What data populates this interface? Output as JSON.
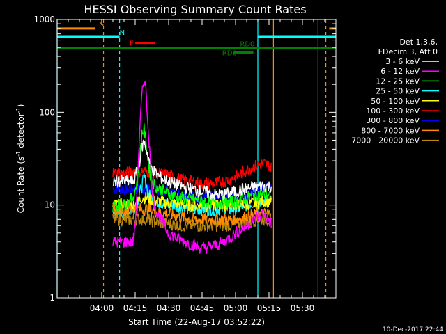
{
  "chart_data": {
    "type": "line",
    "title": "HESSI Observing Summary Count Rates",
    "xlabel": "Start Time (22-Aug-17 03:52:22)",
    "ylabel_main": "Count Rate (s",
    "ylabel_exp1": "-1",
    "ylabel_mid": " detector",
    "ylabel_exp2": "-1",
    "ylabel_end": ")",
    "y_scale": "log",
    "ylim": [
      1,
      1000
    ],
    "xlim_minutes": [
      -20,
      105
    ],
    "x_ticks": [
      {
        "m": 0,
        "label": "04:00"
      },
      {
        "m": 15,
        "label": "04:15"
      },
      {
        "m": 30,
        "label": "04:30"
      },
      {
        "m": 45,
        "label": "04:45"
      },
      {
        "m": 60,
        "label": "05:00"
      },
      {
        "m": 75,
        "label": "05:15"
      },
      {
        "m": 90,
        "label": "05:30"
      }
    ],
    "y_ticks": [
      {
        "v": 1,
        "label": "1"
      },
      {
        "v": 10,
        "label": "10"
      },
      {
        "v": 100,
        "label": "100"
      },
      {
        "v": 1000,
        "label": "1000"
      }
    ],
    "legend_position": "right",
    "legend_header": [
      "Det 1,3,6,",
      "FDecim 3, Att 0"
    ],
    "series": [
      {
        "name": "3 - 6 keV",
        "color": "#ffffff",
        "x": [
          5,
          10,
          14,
          15,
          16,
          17,
          18,
          19,
          20,
          21,
          22,
          24,
          26,
          28,
          30,
          35,
          40,
          45,
          50,
          55,
          60,
          65,
          70,
          72,
          75,
          76
        ],
        "y": [
          18,
          18,
          18,
          20,
          24,
          30,
          42,
          48,
          40,
          32,
          26,
          22,
          20,
          19,
          18,
          16,
          15,
          14,
          13,
          13,
          14,
          15,
          16,
          16,
          16,
          16
        ]
      },
      {
        "name": "6 - 12 keV",
        "color": "#ff00ff",
        "x": [
          5,
          10,
          14,
          15,
          16,
          17,
          18,
          19,
          19.5,
          20,
          21,
          22,
          23,
          25,
          28,
          30,
          35,
          40,
          45,
          50,
          55,
          60,
          65,
          70,
          72,
          75,
          76
        ],
        "y": [
          4,
          4,
          4,
          6,
          20,
          60,
          150,
          230,
          220,
          140,
          60,
          25,
          12,
          8,
          6,
          5,
          4.2,
          3.8,
          3.4,
          3.6,
          4,
          5,
          6,
          7.5,
          8,
          7,
          6
        ]
      },
      {
        "name": "12 - 25 keV",
        "color": "#00ff00",
        "x": [
          5,
          10,
          14,
          16,
          17,
          18,
          19,
          20,
          21,
          22,
          24,
          28,
          35,
          45,
          55,
          60,
          65,
          70,
          72,
          75,
          76
        ],
        "y": [
          10,
          10,
          12,
          18,
          30,
          60,
          65,
          45,
          28,
          20,
          16,
          14,
          12,
          11,
          10.5,
          11,
          12,
          13,
          13,
          13,
          13
        ]
      },
      {
        "name": "25 - 50 keV",
        "color": "#00ffff",
        "x": [
          5,
          10,
          14,
          16,
          18,
          19,
          20,
          21,
          24,
          30,
          40,
          50,
          60,
          65,
          70,
          72,
          75,
          76
        ],
        "y": [
          8,
          8,
          9,
          11,
          16,
          20,
          17,
          13,
          11,
          10,
          9,
          9,
          9,
          10,
          11,
          11,
          11,
          11
        ]
      },
      {
        "name": "50 - 100 keV",
        "color": "#ffff00",
        "x": [
          5,
          10,
          15,
          18,
          20,
          24,
          30,
          40,
          50,
          60,
          70,
          72,
          75,
          76
        ],
        "y": [
          10,
          10,
          10,
          12,
          12,
          11,
          10.5,
          10,
          10,
          10,
          10.5,
          11,
          11,
          11
        ]
      },
      {
        "name": "100 - 300 keV",
        "color": "#ff0000",
        "x": [
          5,
          10,
          15,
          20,
          25,
          30,
          35,
          40,
          45,
          50,
          55,
          60,
          65,
          70,
          72,
          75,
          76
        ],
        "y": [
          22,
          22,
          23,
          23,
          22,
          21,
          19,
          18,
          17,
          17,
          18,
          20,
          24,
          27,
          28,
          27,
          25
        ]
      },
      {
        "name": "300 - 800 keV",
        "color": "#0000ff",
        "x": [
          5,
          10,
          15,
          20,
          25,
          30,
          35,
          40,
          45,
          50,
          55,
          60,
          65,
          70,
          72,
          75,
          76
        ],
        "y": [
          15,
          15,
          15,
          15,
          14.5,
          14,
          13,
          12.5,
          12,
          12,
          12,
          12.5,
          13.5,
          14.5,
          15,
          15,
          15
        ]
      },
      {
        "name": "800 - 7000 keV",
        "color": "#ff8c00",
        "x": [
          5,
          10,
          15,
          20,
          25,
          30,
          35,
          40,
          45,
          50,
          55,
          60,
          65,
          70,
          72,
          75,
          76
        ],
        "y": [
          9,
          9,
          9,
          9,
          8.5,
          8,
          7.5,
          7,
          7,
          7,
          7,
          7,
          7.5,
          8,
          8,
          8,
          8
        ]
      },
      {
        "name": "7000 - 20000 keV",
        "color": "#b8860b",
        "x": [
          5,
          10,
          15,
          20,
          25,
          30,
          35,
          40,
          45,
          50,
          55,
          60,
          65,
          70,
          72,
          75,
          76
        ],
        "y": [
          7,
          7,
          7,
          7,
          6.5,
          6.3,
          6,
          6,
          6,
          6,
          6,
          6.2,
          6.5,
          7,
          7,
          7,
          7
        ]
      }
    ],
    "flag_bars": [
      {
        "label": "S",
        "color": "#ff8c00",
        "x1": -20,
        "x2": -3,
        "y": 800,
        "label_x": -1,
        "label_side": "above"
      },
      {
        "label": "S",
        "color": "#ff8c00",
        "x1": 102,
        "x2": 105,
        "y": 800,
        "label_x": null,
        "label_side": "above"
      },
      {
        "label": "N",
        "color": "#00ffff",
        "x1": -20,
        "x2": 8,
        "y": 650,
        "label_x": 8,
        "label_side": "above"
      },
      {
        "label": "N",
        "color": "#00ffff",
        "x1": 70,
        "x2": 105,
        "y": 650,
        "label_x": null,
        "label_side": "above"
      },
      {
        "label": "F",
        "color": "#ff0000",
        "x1": 15,
        "x2": 24,
        "y": 560,
        "label_x": 12.5,
        "label_side": "left"
      },
      {
        "label": "RD0",
        "color": "#008000",
        "x1": -20,
        "x2": 105,
        "y": 490,
        "label_x": 62,
        "label_side": "above"
      },
      {
        "label": "RD6",
        "color": "#008000",
        "x1": 59,
        "x2": 68,
        "y": 440,
        "label_x": 54,
        "label_side": "left"
      }
    ],
    "vlines": [
      {
        "x": -20,
        "color": "#00ffff",
        "dash": false
      },
      {
        "x": 0.8,
        "color": "#ff8c00",
        "dash": true
      },
      {
        "x": 8,
        "color": "#00ffff",
        "dash": true
      },
      {
        "x": 70,
        "color": "#00ffff",
        "dash": false
      },
      {
        "x": 77,
        "color": "#ff8c00",
        "dash": false
      },
      {
        "x": 97,
        "color": "#d2a000",
        "dash": false
      },
      {
        "x": 100.5,
        "color": "#ff8c00",
        "dash": true
      }
    ]
  },
  "footer": {
    "date_stamp": "10-Dec-2017 22:44"
  }
}
